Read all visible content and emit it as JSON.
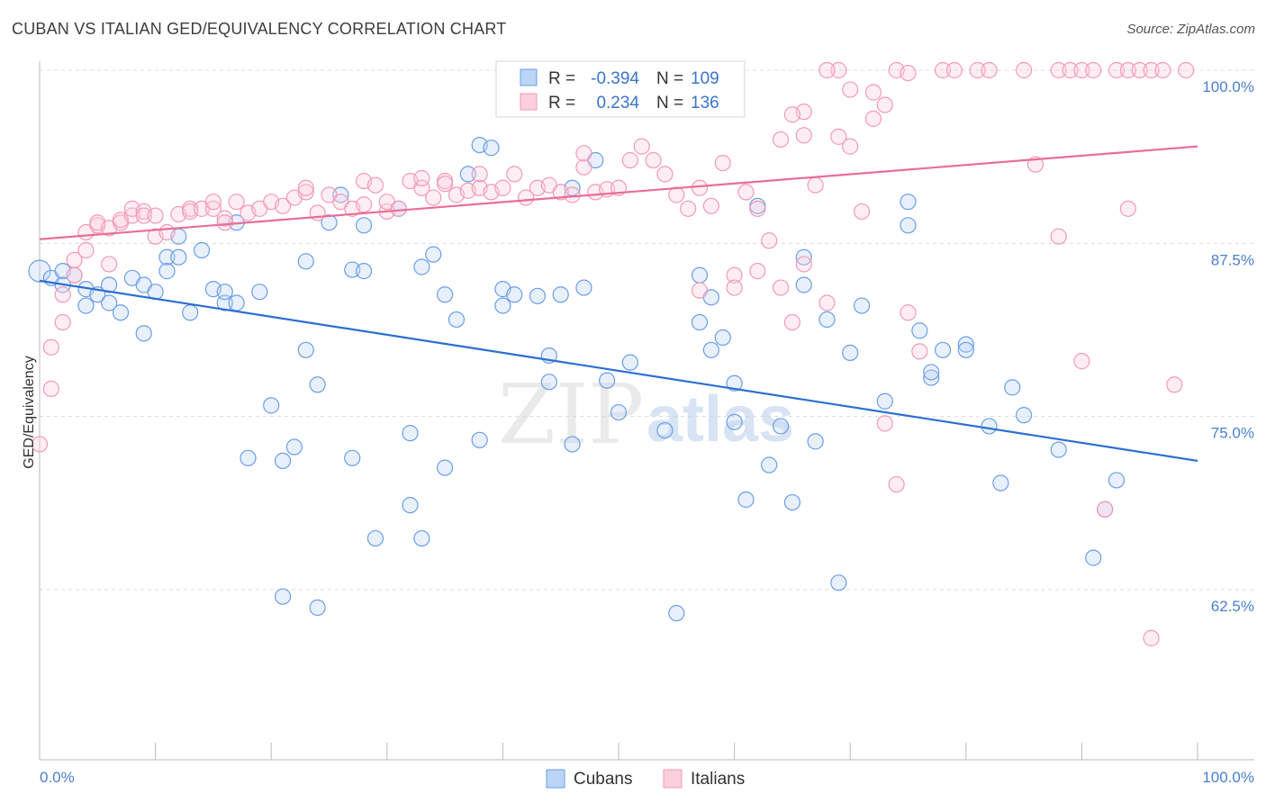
{
  "header": {
    "title": "CUBAN VS ITALIAN GED/EQUIVALENCY CORRELATION CHART",
    "source": "Source: ZipAtlas.com"
  },
  "legend": {
    "r_label": "R =",
    "n_label": "N =",
    "cubans": {
      "r": "-0.394",
      "n": "109"
    },
    "italians": {
      "r": "0.234",
      "n": "136"
    }
  },
  "watermark": {
    "zip": "ZIP",
    "atlas": "atlas"
  },
  "chart_data": {
    "type": "scatter",
    "title": "CUBAN VS ITALIAN GED/EQUIVALENCY CORRELATION CHART",
    "xlabel": "",
    "ylabel": "GED/Equivalency",
    "xlim": [
      0,
      100
    ],
    "ylim": [
      52.5,
      101.5
    ],
    "x_tick_labels": [
      "0.0%",
      "100.0%"
    ],
    "y_ticks": [
      62.5,
      75.0,
      87.5,
      100.0
    ],
    "y_tick_labels": [
      "62.5%",
      "75.0%",
      "87.5%",
      "100.0%"
    ],
    "grid": true,
    "legend_position": "top-center",
    "colors": {
      "cubans": "#6b9ee8",
      "italians": "#f29ab5",
      "cubans_line": "#2a6fd1",
      "italians_line": "#e86e99"
    },
    "series": [
      {
        "name": "Cubans",
        "trend": {
          "x": [
            0,
            100
          ],
          "y": [
            84.8,
            71.8
          ]
        },
        "points": [
          [
            0,
            85.5
          ],
          [
            1,
            85
          ],
          [
            2,
            85.5
          ],
          [
            2,
            84.5
          ],
          [
            3,
            85.2
          ],
          [
            4,
            84.2
          ],
          [
            4,
            83
          ],
          [
            5,
            83.8
          ],
          [
            6,
            83.2
          ],
          [
            6,
            84.5
          ],
          [
            7,
            82.5
          ],
          [
            8,
            85
          ],
          [
            9,
            84.5
          ],
          [
            9,
            81
          ],
          [
            10,
            84
          ],
          [
            11,
            86.5
          ],
          [
            11,
            85.5
          ],
          [
            12,
            86.5
          ],
          [
            12,
            88
          ],
          [
            13,
            82.5
          ],
          [
            14,
            87
          ],
          [
            15,
            84.2
          ],
          [
            16,
            83.2
          ],
          [
            16,
            84
          ],
          [
            17,
            83.2
          ],
          [
            17,
            89
          ],
          [
            18,
            72
          ],
          [
            19,
            84
          ],
          [
            20,
            75.8
          ],
          [
            21,
            71.8
          ],
          [
            21,
            62
          ],
          [
            22,
            72.8
          ],
          [
            23,
            86.2
          ],
          [
            23,
            79.8
          ],
          [
            24,
            77.3
          ],
          [
            25,
            89
          ],
          [
            26,
            91
          ],
          [
            27,
            72
          ],
          [
            27,
            85.6
          ],
          [
            28,
            88.8
          ],
          [
            28,
            85.5
          ],
          [
            29,
            66.2
          ],
          [
            31,
            90
          ],
          [
            32,
            73.8
          ],
          [
            32,
            68.6
          ],
          [
            33,
            85.8
          ],
          [
            34,
            86.7
          ],
          [
            35,
            83.8
          ],
          [
            35,
            71.3
          ],
          [
            36,
            82
          ],
          [
            37,
            92.5
          ],
          [
            38,
            73.3
          ],
          [
            38,
            94.6
          ],
          [
            39,
            94.4
          ],
          [
            40,
            84.2
          ],
          [
            40,
            83
          ],
          [
            41,
            83.8
          ],
          [
            43,
            83.7
          ],
          [
            44,
            79.4
          ],
          [
            44,
            77.5
          ],
          [
            45,
            83.8
          ],
          [
            46,
            73
          ],
          [
            46,
            91.5
          ],
          [
            47,
            84.3
          ],
          [
            48,
            93.5
          ],
          [
            49,
            77.6
          ],
          [
            50,
            75.3
          ],
          [
            51,
            78.9
          ],
          [
            54,
            74
          ],
          [
            57,
            85.2
          ],
          [
            57,
            81.8
          ],
          [
            58,
            79.8
          ],
          [
            58,
            83.6
          ],
          [
            59,
            80.7
          ],
          [
            60,
            77.4
          ],
          [
            60,
            74.6
          ],
          [
            61,
            69
          ],
          [
            62,
            90.2
          ],
          [
            63,
            71.5
          ],
          [
            64,
            74.3
          ],
          [
            65,
            68.8
          ],
          [
            66,
            86.5
          ],
          [
            66,
            84.5
          ],
          [
            67,
            73.2
          ],
          [
            68,
            82
          ],
          [
            69,
            63
          ],
          [
            70,
            79.6
          ],
          [
            71,
            83
          ],
          [
            73,
            76.1
          ],
          [
            75,
            88.8
          ],
          [
            75,
            90.5
          ],
          [
            76,
            81.2
          ],
          [
            77,
            77.8
          ],
          [
            77,
            78.2
          ],
          [
            78,
            79.8
          ],
          [
            80,
            80.2
          ],
          [
            80,
            79.8
          ],
          [
            82,
            74.3
          ],
          [
            83,
            70.2
          ],
          [
            84,
            77.1
          ],
          [
            85,
            75.1
          ],
          [
            88,
            72.6
          ],
          [
            91,
            64.8
          ],
          [
            92,
            68.3
          ],
          [
            93,
            70.4
          ],
          [
            55,
            60.8
          ],
          [
            33,
            66.2
          ],
          [
            24,
            61.2
          ]
        ]
      },
      {
        "name": "Italians",
        "trend": {
          "x": [
            0,
            100
          ],
          "y": [
            87.8,
            94.5
          ]
        },
        "points": [
          [
            0,
            73
          ],
          [
            1,
            77
          ],
          [
            1,
            80
          ],
          [
            2,
            81.8
          ],
          [
            2,
            83.8
          ],
          [
            3,
            85.2
          ],
          [
            3,
            86.3
          ],
          [
            4,
            87
          ],
          [
            4,
            88.3
          ],
          [
            5,
            88.8
          ],
          [
            5,
            89
          ],
          [
            6,
            86
          ],
          [
            6,
            88.6
          ],
          [
            7,
            89
          ],
          [
            7,
            89.2
          ],
          [
            8,
            89.5
          ],
          [
            8,
            90
          ],
          [
            9,
            89.8
          ],
          [
            9,
            89.5
          ],
          [
            10,
            89.5
          ],
          [
            10,
            88
          ],
          [
            11,
            88.3
          ],
          [
            12,
            89.6
          ],
          [
            13,
            90
          ],
          [
            13,
            89.8
          ],
          [
            14,
            90
          ],
          [
            15,
            90
          ],
          [
            15,
            90.5
          ],
          [
            16,
            89.3
          ],
          [
            16,
            89
          ],
          [
            17,
            90.5
          ],
          [
            18,
            89.7
          ],
          [
            19,
            90
          ],
          [
            20,
            90.5
          ],
          [
            21,
            90.2
          ],
          [
            22,
            90.8
          ],
          [
            23,
            91.2
          ],
          [
            23,
            91.5
          ],
          [
            24,
            89.7
          ],
          [
            25,
            91
          ],
          [
            26,
            90.5
          ],
          [
            27,
            90
          ],
          [
            28,
            90.3
          ],
          [
            28,
            92
          ],
          [
            29,
            91.7
          ],
          [
            30,
            89.8
          ],
          [
            30,
            90.5
          ],
          [
            31,
            90
          ],
          [
            32,
            92
          ],
          [
            33,
            91.5
          ],
          [
            33,
            92.2
          ],
          [
            34,
            90.8
          ],
          [
            35,
            92
          ],
          [
            35,
            91.8
          ],
          [
            36,
            91
          ],
          [
            37,
            91.3
          ],
          [
            38,
            91.5
          ],
          [
            38,
            92.5
          ],
          [
            39,
            91.2
          ],
          [
            40,
            91.5
          ],
          [
            41,
            92.5
          ],
          [
            42,
            90.8
          ],
          [
            43,
            91.5
          ],
          [
            44,
            91.7
          ],
          [
            45,
            91.2
          ],
          [
            46,
            91
          ],
          [
            47,
            93
          ],
          [
            47,
            94
          ],
          [
            48,
            91.2
          ],
          [
            49,
            91.4
          ],
          [
            50,
            91.5
          ],
          [
            51,
            93.5
          ],
          [
            52,
            94.5
          ],
          [
            53,
            93.5
          ],
          [
            54,
            92.5
          ],
          [
            55,
            91
          ],
          [
            56,
            90
          ],
          [
            57,
            91.5
          ],
          [
            58,
            90.2
          ],
          [
            59,
            93.3
          ],
          [
            60,
            85.2
          ],
          [
            61,
            91.2
          ],
          [
            62,
            90
          ],
          [
            63,
            87.7
          ],
          [
            64,
            84.3
          ],
          [
            65,
            81.8
          ],
          [
            66,
            86
          ],
          [
            66,
            95.3
          ],
          [
            67,
            91.7
          ],
          [
            68,
            83.2
          ],
          [
            69,
            95.2
          ],
          [
            70,
            94.5
          ],
          [
            71,
            89.8
          ],
          [
            72,
            96.5
          ],
          [
            73,
            74.5
          ],
          [
            74,
            70.1
          ],
          [
            75,
            82.5
          ],
          [
            76,
            79.7
          ],
          [
            78,
            100
          ],
          [
            79,
            100
          ],
          [
            81,
            100
          ],
          [
            82,
            100
          ],
          [
            85,
            100
          ],
          [
            88,
            100
          ],
          [
            89,
            100
          ],
          [
            90,
            100
          ],
          [
            91,
            100
          ],
          [
            93,
            100
          ],
          [
            94,
            100
          ],
          [
            95,
            100
          ],
          [
            96,
            100
          ],
          [
            97,
            100
          ],
          [
            99,
            100
          ],
          [
            72,
            98.4
          ],
          [
            73,
            97.5
          ],
          [
            74,
            100
          ],
          [
            75,
            99.8
          ],
          [
            70,
            98.6
          ],
          [
            69,
            100
          ],
          [
            68,
            100
          ],
          [
            66,
            97
          ],
          [
            65,
            96.8
          ],
          [
            64,
            95
          ],
          [
            62,
            85.5
          ],
          [
            60,
            84.3
          ],
          [
            57,
            84.1
          ],
          [
            86,
            93.2
          ],
          [
            88,
            88
          ],
          [
            90,
            79
          ],
          [
            92,
            68.3
          ],
          [
            94,
            90
          ],
          [
            96,
            59
          ],
          [
            98,
            77.3
          ]
        ]
      }
    ]
  }
}
